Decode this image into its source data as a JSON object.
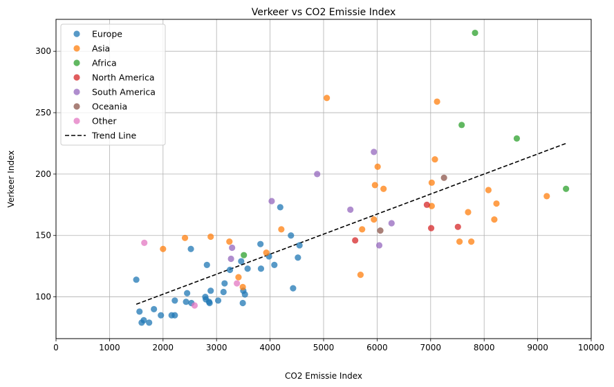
{
  "chart_data": {
    "type": "scatter",
    "title": "Verkeer vs CO2 Emissie Index",
    "xlabel": "CO2 Emissie Index",
    "ylabel": "Verkeer Index",
    "xlim": [
      0,
      10000
    ],
    "ylim": [
      66,
      326
    ],
    "xticks": [
      0,
      1000,
      2000,
      3000,
      4000,
      5000,
      6000,
      7000,
      8000,
      9000,
      10000
    ],
    "yticks": [
      100,
      150,
      200,
      250,
      300
    ],
    "grid": true,
    "legend_position": "top-left",
    "series": [
      {
        "name": "Europe",
        "color": "#1f77b4",
        "points": [
          [
            1500,
            114
          ],
          [
            1560,
            88
          ],
          [
            1600,
            79
          ],
          [
            1640,
            81
          ],
          [
            1740,
            79
          ],
          [
            1830,
            90
          ],
          [
            1960,
            85
          ],
          [
            2160,
            85
          ],
          [
            2220,
            85
          ],
          [
            2220,
            97
          ],
          [
            2430,
            96
          ],
          [
            2450,
            103
          ],
          [
            2520,
            139
          ],
          [
            2530,
            95
          ],
          [
            2790,
            100
          ],
          [
            2800,
            98
          ],
          [
            2820,
            126
          ],
          [
            2860,
            96
          ],
          [
            2870,
            95
          ],
          [
            2890,
            105
          ],
          [
            3030,
            97
          ],
          [
            3130,
            104
          ],
          [
            3150,
            111
          ],
          [
            3250,
            122
          ],
          [
            3460,
            129
          ],
          [
            3490,
            95
          ],
          [
            3500,
            105
          ],
          [
            3530,
            102
          ],
          [
            3580,
            123
          ],
          [
            3820,
            143
          ],
          [
            3830,
            123
          ],
          [
            3980,
            133
          ],
          [
            4080,
            126
          ],
          [
            4190,
            173
          ],
          [
            4390,
            150
          ],
          [
            4430,
            107
          ],
          [
            4520,
            132
          ],
          [
            4550,
            142
          ]
        ]
      },
      {
        "name": "Asia",
        "color": "#ff7f0e",
        "points": [
          [
            2000,
            139
          ],
          [
            2410,
            148
          ],
          [
            2890,
            149
          ],
          [
            3240,
            145
          ],
          [
            3410,
            116
          ],
          [
            3490,
            108
          ],
          [
            3930,
            136
          ],
          [
            4210,
            155
          ],
          [
            5060,
            262
          ],
          [
            5690,
            118
          ],
          [
            5720,
            155
          ],
          [
            5940,
            163
          ],
          [
            5960,
            191
          ],
          [
            6010,
            206
          ],
          [
            6120,
            188
          ],
          [
            7020,
            193
          ],
          [
            7020,
            174
          ],
          [
            7080,
            212
          ],
          [
            7120,
            259
          ],
          [
            7540,
            145
          ],
          [
            7700,
            169
          ],
          [
            7760,
            145
          ],
          [
            8080,
            187
          ],
          [
            8190,
            163
          ],
          [
            8230,
            176
          ],
          [
            9170,
            182
          ]
        ]
      },
      {
        "name": "Africa",
        "color": "#2ca02c",
        "points": [
          [
            3510,
            134
          ],
          [
            7580,
            240
          ],
          [
            7830,
            315
          ],
          [
            8610,
            229
          ],
          [
            9530,
            188
          ]
        ]
      },
      {
        "name": "North America",
        "color": "#d62728",
        "points": [
          [
            5590,
            146
          ],
          [
            6930,
            175
          ],
          [
            7010,
            156
          ],
          [
            7510,
            157
          ]
        ]
      },
      {
        "name": "South America",
        "color": "#9467bd",
        "points": [
          [
            3270,
            131
          ],
          [
            3290,
            140
          ],
          [
            4030,
            178
          ],
          [
            4880,
            200
          ],
          [
            5500,
            171
          ],
          [
            5940,
            218
          ],
          [
            6040,
            142
          ],
          [
            6270,
            160
          ]
        ]
      },
      {
        "name": "Oceania",
        "color": "#8c564b",
        "points": [
          [
            6060,
            154
          ],
          [
            7250,
            197
          ]
        ]
      },
      {
        "name": "Other",
        "color": "#e377c2",
        "points": [
          [
            1650,
            144
          ],
          [
            2590,
            93
          ],
          [
            3380,
            111
          ]
        ]
      }
    ],
    "trend_line": {
      "name": "Trend Line",
      "color": "#000000",
      "x": [
        1500,
        9530
      ],
      "y": [
        94,
        225
      ]
    }
  }
}
